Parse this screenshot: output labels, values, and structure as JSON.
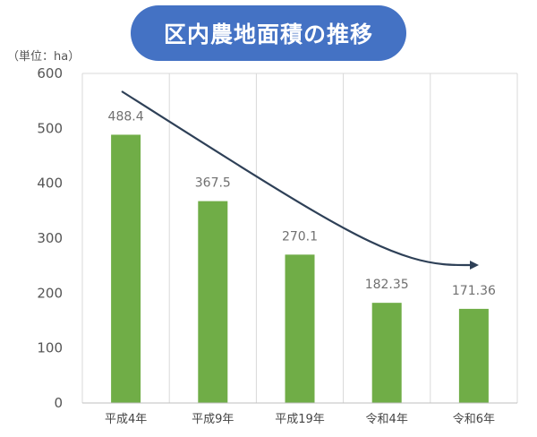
{
  "title": "区内農地面積の推移",
  "unit_label": "（単位：ha）",
  "chart_data": {
    "type": "bar",
    "categories": [
      "平成4年",
      "平成9年",
      "平成19年",
      "令和4年",
      "令和6年"
    ],
    "values": [
      488.4,
      367.5,
      270.1,
      182.35,
      171.36
    ],
    "value_labels": [
      "488.4",
      "367.5",
      "270.1",
      "182.35",
      "171.36"
    ],
    "title": "区内農地面積の推移",
    "xlabel": "",
    "ylabel": "（単位：ha）",
    "ylim": [
      0,
      600
    ],
    "yticks": [
      0,
      100,
      200,
      300,
      400,
      500,
      600
    ],
    "grid": "vertical",
    "bar_color": "#70ad47",
    "trend_arrow": "downward",
    "trend_color": "#2e4057"
  }
}
